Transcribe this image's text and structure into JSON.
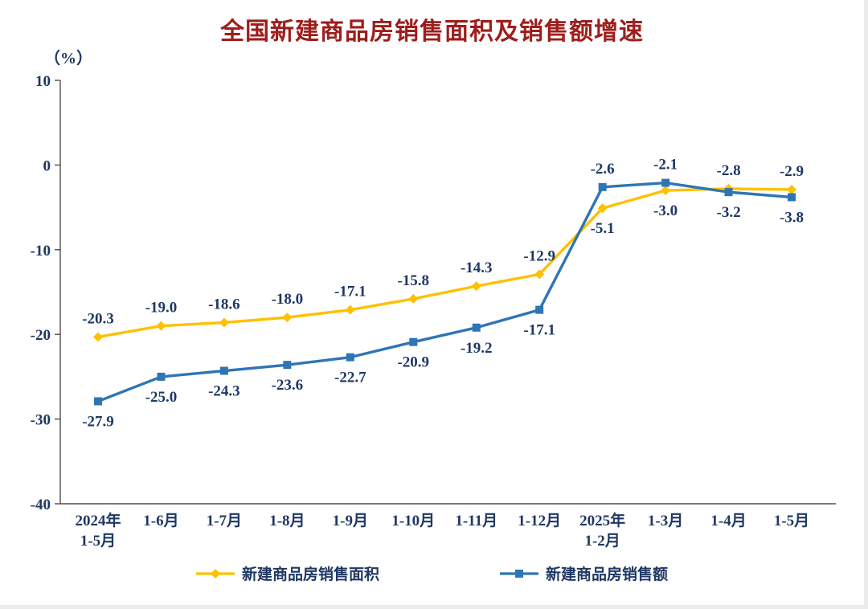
{
  "title": "全国新建商品房销售面积及销售额增速",
  "y_unit_label": "（%）",
  "colors": {
    "title": "#9E1E1C",
    "text": "#1F3864",
    "axis": "#4d4d4d",
    "area_series": "#FFC000",
    "value_series": "#2E75B6"
  },
  "chart_data": {
    "type": "line",
    "title": "全国新建商品房销售面积及销售额增速",
    "ylabel": "（%）",
    "xlabel": "",
    "ylim": [
      -40,
      10
    ],
    "yticks": [
      10,
      0,
      -10,
      -20,
      -30,
      -40
    ],
    "grid": false,
    "legend_position": "bottom",
    "categories": [
      [
        "2024年",
        "1-5月"
      ],
      [
        "1-6月"
      ],
      [
        "1-7月"
      ],
      [
        "1-8月"
      ],
      [
        "1-9月"
      ],
      [
        "1-10月"
      ],
      [
        "1-11月"
      ],
      [
        "1-12月"
      ],
      [
        "2025年",
        "1-2月"
      ],
      [
        "1-3月"
      ],
      [
        "1-4月"
      ],
      [
        "1-5月"
      ]
    ],
    "series": [
      {
        "name": "新建商品房销售面积",
        "color": "#FFC000",
        "marker": "diamond",
        "values": [
          -20.3,
          -19.0,
          -18.6,
          -18.0,
          -17.1,
          -15.8,
          -14.3,
          -12.9,
          -5.1,
          -3.0,
          -2.8,
          -2.9
        ]
      },
      {
        "name": "新建商品房销售额",
        "color": "#2E75B6",
        "marker": "square",
        "values": [
          -27.9,
          -25.0,
          -24.3,
          -23.6,
          -22.7,
          -20.9,
          -19.2,
          -17.1,
          -2.6,
          -2.1,
          -3.2,
          -3.8
        ]
      }
    ]
  }
}
